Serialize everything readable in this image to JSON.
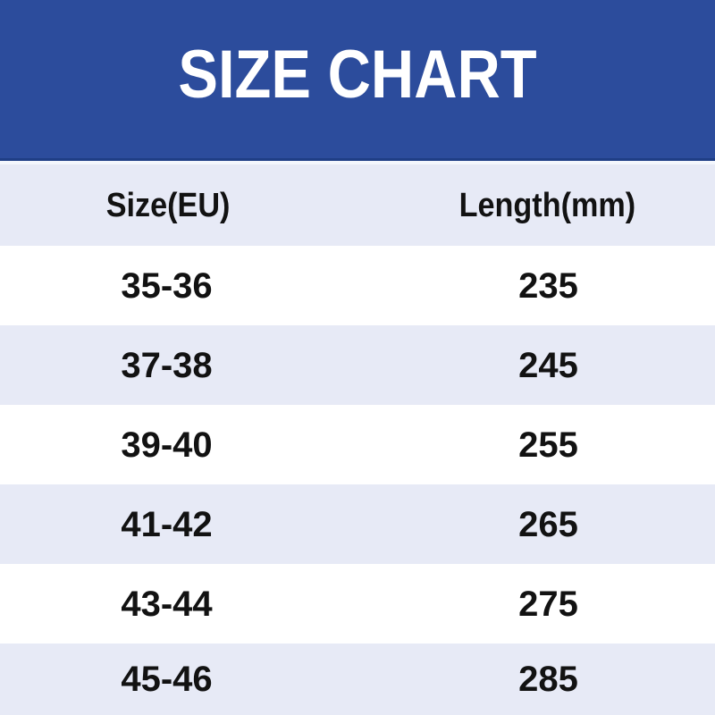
{
  "banner": {
    "title": "SIZE CHART",
    "background_color": "#2C4C9C",
    "bottom_line_color": "#1F3E85",
    "text_color": "#FFFFFF"
  },
  "table": {
    "columns": [
      "Size(EU)",
      "Length(mm)"
    ],
    "rows": [
      {
        "size": "35-36",
        "length": "235"
      },
      {
        "size": "37-38",
        "length": "245"
      },
      {
        "size": "39-40",
        "length": "255"
      },
      {
        "size": "41-42",
        "length": "265"
      },
      {
        "size": "43-44",
        "length": "275"
      },
      {
        "size": "45-46",
        "length": "285"
      }
    ],
    "stripe_color": "#E7EAF6",
    "alt_row_color": "#FFFFFF",
    "text_color": "#121212"
  },
  "chart_data": {
    "type": "table",
    "title": "SIZE CHART",
    "columns": [
      "Size(EU)",
      "Length(mm)"
    ],
    "categories": [
      "35-36",
      "37-38",
      "39-40",
      "41-42",
      "43-44",
      "45-46"
    ],
    "values": [
      235,
      245,
      255,
      265,
      275,
      285
    ],
    "xlabel": "Size(EU)",
    "ylabel": "Length(mm)",
    "layout": "two-column striped table, header banner on top, alternating white and light-lavender rows"
  }
}
